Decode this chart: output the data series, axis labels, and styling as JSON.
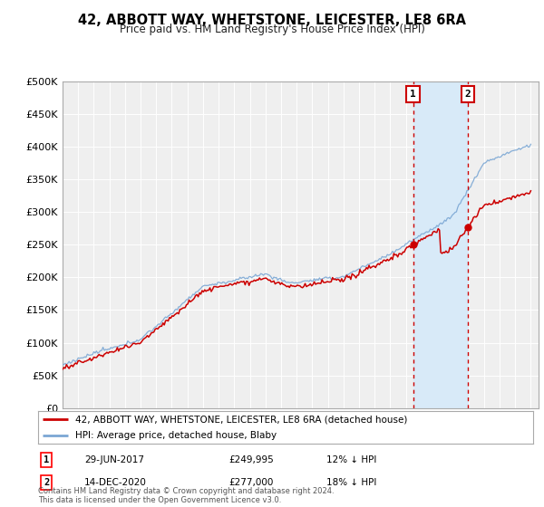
{
  "title": "42, ABBOTT WAY, WHETSTONE, LEICESTER, LE8 6RA",
  "subtitle": "Price paid vs. HM Land Registry's House Price Index (HPI)",
  "ylim": [
    0,
    500000
  ],
  "yticks": [
    0,
    50000,
    100000,
    150000,
    200000,
    250000,
    300000,
    350000,
    400000,
    450000,
    500000
  ],
  "ytick_labels": [
    "£0",
    "£50K",
    "£100K",
    "£150K",
    "£200K",
    "£250K",
    "£300K",
    "£350K",
    "£400K",
    "£450K",
    "£500K"
  ],
  "hpi_color": "#7ba7d4",
  "price_color": "#cc0000",
  "price_sale1": 249995,
  "price_sale2": 277000,
  "sale1_year": 2017.458,
  "sale2_year": 2020.958,
  "legend_line1": "42, ABBOTT WAY, WHETSTONE, LEICESTER, LE8 6RA (detached house)",
  "legend_line2": "HPI: Average price, detached house, Blaby",
  "table_row1": [
    "1",
    "29-JUN-2017",
    "£249,995",
    "12% ↓ HPI"
  ],
  "table_row2": [
    "2",
    "14-DEC-2020",
    "£277,000",
    "18% ↓ HPI"
  ],
  "footnote": "Contains HM Land Registry data © Crown copyright and database right 2024.\nThis data is licensed under the Open Government Licence v3.0.",
  "bg_color": "#ffffff",
  "plot_bg_color": "#efefef",
  "grid_color": "#ffffff",
  "shade_color": "#d8eaf8",
  "start_year": 1995,
  "end_year": 2025
}
